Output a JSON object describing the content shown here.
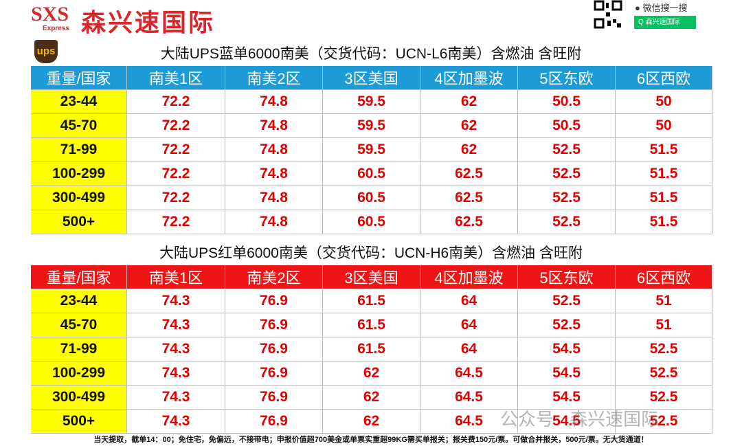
{
  "header": {
    "logo_text": "SXS",
    "logo_sub": "Express",
    "company": "森兴速国际",
    "wechat_search": "微信搜一搜",
    "wechat_button": "森兴速国际"
  },
  "ups_logo": "ups",
  "tables": [
    {
      "title": "大陆UPS蓝单6000南美（交货代码：UCN-L6南美）含燃油 含旺附",
      "columns": [
        "重量/国家",
        "南美1区",
        "南美2区",
        "3区美国",
        "4区加墨波",
        "5区东欧",
        "6区西欧"
      ],
      "rows": [
        [
          "23-44",
          72.2,
          74.8,
          59.5,
          62,
          50.5,
          50
        ],
        [
          "45-70",
          72.2,
          74.8,
          59.5,
          62,
          50.5,
          50
        ],
        [
          "71-99",
          72.2,
          74.8,
          59.5,
          62,
          52.5,
          51.5
        ],
        [
          "100-299",
          72.2,
          74.8,
          60.5,
          62.5,
          52.5,
          51.5
        ],
        [
          "300-499",
          72.2,
          74.8,
          60.5,
          62.5,
          52.5,
          51.5
        ],
        [
          "500+",
          72.2,
          74.8,
          60.5,
          62.5,
          52.5,
          51.5
        ]
      ]
    },
    {
      "title": "大陆UPS红单6000南美（交货代码：UCN-H6南美）含燃油 含旺附",
      "columns": [
        "重量/国家",
        "南美1区",
        "南美2区",
        "3区美国",
        "4区加墨波",
        "5区东欧",
        "6区西欧"
      ],
      "rows": [
        [
          "23-44",
          74.3,
          76.9,
          61.5,
          64,
          52.5,
          51
        ],
        [
          "45-70",
          74.3,
          76.9,
          61.5,
          64,
          52.5,
          51
        ],
        [
          "71-99",
          74.3,
          76.9,
          61.5,
          64,
          54.5,
          52.5
        ],
        [
          "100-299",
          74.3,
          76.9,
          62,
          64.5,
          54.5,
          52.5
        ],
        [
          "300-499",
          74.3,
          76.9,
          62,
          64.5,
          54.5,
          52.5
        ],
        [
          "500+",
          74.3,
          76.9,
          62,
          64.5,
          54.5,
          52.5
        ]
      ]
    }
  ],
  "footer": "当天提取，截单14：00；免住宅，免偏远，不接带电；申报价值超700美金或单票实重超99KG需买单报关；报关费150元/票。可做合并报关，500元/票。无大货通道！",
  "watermark": "公众号 · 森兴速国际"
}
